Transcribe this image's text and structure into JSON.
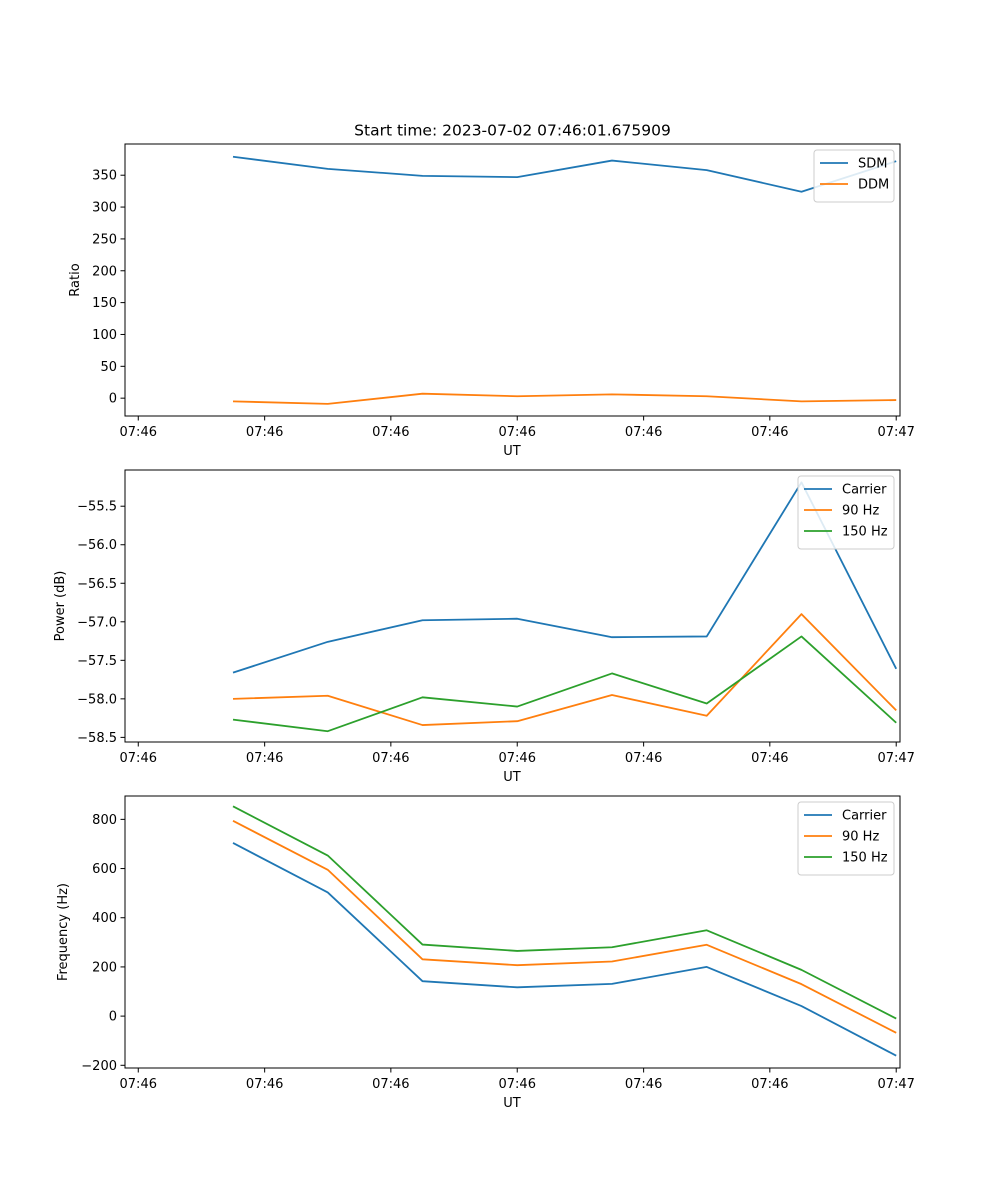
{
  "chart_data": [
    {
      "type": "line",
      "title": "Start time: 2023-07-02 07:46:01.675909",
      "xlabel": "UT",
      "ylabel": "Ratio",
      "x": [
        0.5,
        1.0,
        1.5,
        2.0,
        2.5,
        3.0,
        3.5,
        4.0
      ],
      "xlim": [
        -0.07,
        4.02
      ],
      "x_ticks": [
        0,
        0.667,
        1.333,
        2.0,
        2.667,
        3.333,
        4.0
      ],
      "x_tick_labels": [
        "07:46",
        "07:46",
        "07:46",
        "07:46",
        "07:46",
        "07:46",
        "07:47"
      ],
      "ylim": [
        -28,
        399
      ],
      "y_ticks": [
        0,
        50,
        100,
        150,
        200,
        250,
        300,
        350
      ],
      "y_tick_labels": [
        "0",
        "50",
        "100",
        "150",
        "200",
        "250",
        "300",
        "350"
      ],
      "legend_position": "top-right",
      "series": [
        {
          "name": "SDM",
          "color": "#1f77b4",
          "values": [
            379,
            360,
            349,
            347,
            373,
            358,
            324,
            372
          ]
        },
        {
          "name": "DDM",
          "color": "#ff7f0e",
          "values": [
            -5,
            -9,
            7,
            3,
            6,
            3,
            -5,
            -3
          ]
        }
      ]
    },
    {
      "type": "line",
      "title": "",
      "xlabel": "UT",
      "ylabel": "Power (dB)",
      "x": [
        0.5,
        1.0,
        1.5,
        2.0,
        2.5,
        3.0,
        3.5,
        4.0
      ],
      "xlim": [
        -0.07,
        4.02
      ],
      "x_ticks": [
        0,
        0.667,
        1.333,
        2.0,
        2.667,
        3.333,
        4.0
      ],
      "x_tick_labels": [
        "07:46",
        "07:46",
        "07:46",
        "07:46",
        "07:46",
        "07:46",
        "07:47"
      ],
      "ylim": [
        -58.56,
        -55.03
      ],
      "y_ticks": [
        -58.5,
        -58.0,
        -57.5,
        -57.0,
        -56.5,
        -56.0,
        -55.5
      ],
      "y_tick_labels": [
        "−58.5",
        "−58.0",
        "−57.5",
        "−57.0",
        "−56.5",
        "−56.0",
        "−55.5"
      ],
      "legend_position": "top-right",
      "series": [
        {
          "name": "Carrier",
          "color": "#1f77b4",
          "values": [
            -57.66,
            -57.26,
            -56.98,
            -56.96,
            -57.2,
            -57.19,
            -55.19,
            -57.61
          ]
        },
        {
          "name": "90 Hz",
          "color": "#ff7f0e",
          "values": [
            -58.0,
            -57.96,
            -58.34,
            -58.29,
            -57.95,
            -58.22,
            -56.9,
            -58.15
          ]
        },
        {
          "name": "150 Hz",
          "color": "#2ca02c",
          "values": [
            -58.27,
            -58.42,
            -57.98,
            -58.1,
            -57.67,
            -58.06,
            -57.19,
            -58.31
          ]
        }
      ]
    },
    {
      "type": "line",
      "title": "",
      "xlabel": "UT",
      "ylabel": "Frequency (Hz)",
      "x": [
        0.5,
        1.0,
        1.5,
        2.0,
        2.5,
        3.0,
        3.5,
        4.0
      ],
      "xlim": [
        -0.07,
        4.02
      ],
      "x_ticks": [
        0,
        0.667,
        1.333,
        2.0,
        2.667,
        3.333,
        4.0
      ],
      "x_tick_labels": [
        "07:46",
        "07:46",
        "07:46",
        "07:46",
        "07:46",
        "07:46",
        "07:47"
      ],
      "ylim": [
        -211,
        895
      ],
      "y_ticks": [
        -200,
        0,
        200,
        400,
        600,
        800
      ],
      "y_tick_labels": [
        "−200",
        "0",
        "200",
        "400",
        "600",
        "800"
      ],
      "legend_position": "top-right",
      "series": [
        {
          "name": "Carrier",
          "color": "#1f77b4",
          "values": [
            704,
            503,
            142,
            117,
            131,
            200,
            41,
            -161
          ]
        },
        {
          "name": "90 Hz",
          "color": "#ff7f0e",
          "values": [
            794,
            595,
            231,
            207,
            222,
            290,
            130,
            -68
          ]
        },
        {
          "name": "150 Hz",
          "color": "#2ca02c",
          "values": [
            853,
            653,
            291,
            265,
            280,
            349,
            188,
            -10
          ]
        }
      ]
    }
  ]
}
